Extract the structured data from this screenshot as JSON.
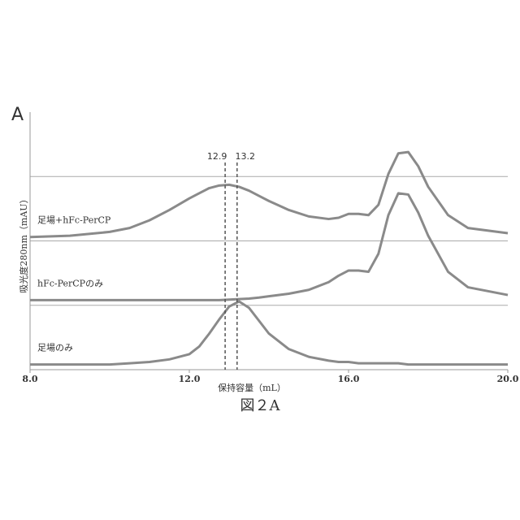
{
  "chart_data": {
    "type": "line",
    "panel_label": "A",
    "caption": "図２A",
    "x_label": "保持容量（mL）",
    "y_label": "吸光度280nm（mAU）",
    "xlim": [
      8.0,
      20.0
    ],
    "xticks": [
      {
        "value": 8,
        "label": "8.0"
      },
      {
        "value": 12,
        "label": "12.0"
      },
      {
        "value": 16,
        "label": "16.0"
      },
      {
        "value": 20,
        "label": "20.0"
      }
    ],
    "ylim": [
      0,
      100
    ],
    "hlines": [
      25,
      50,
      75
    ],
    "vlines": [
      12.9,
      13.2
    ],
    "x": [
      8,
      9,
      10,
      10.5,
      11,
      11.5,
      12,
      12.25,
      12.5,
      12.75,
      13,
      13.25,
      13.5,
      13.75,
      14,
      14.5,
      15,
      15.5,
      15.75,
      16,
      16.25,
      16.5,
      16.75,
      17,
      17.25,
      17.5,
      17.75,
      18,
      18.5,
      19,
      20
    ],
    "series": [
      {
        "name": "足場+hFc-PerCP",
        "color": "#8a8a8a",
        "values": [
          51.5,
          52,
          53.5,
          55,
          58,
          62,
          66.5,
          68.5,
          70.5,
          71.5,
          71.8,
          71,
          69.5,
          67.5,
          65.5,
          62,
          59.5,
          58.5,
          59,
          60.5,
          60.5,
          60,
          64,
          76,
          84,
          84.5,
          79,
          71,
          60,
          55,
          53
        ]
      },
      {
        "name": "hFc-PerCPのみ",
        "color": "#8a8a8a",
        "values": [
          27,
          27,
          27,
          27,
          27,
          27,
          27,
          27,
          27,
          27,
          27.2,
          27.4,
          27.6,
          28,
          28.5,
          29.5,
          31,
          34,
          36.5,
          38.5,
          38.5,
          38,
          45,
          60,
          68.5,
          68,
          61,
          52,
          38,
          32,
          29
        ]
      },
      {
        "name": "足場のみ",
        "color": "#8a8a8a",
        "values": [
          2,
          2,
          2,
          2.5,
          3,
          4,
          6,
          9,
          14,
          19.5,
          24.5,
          26.5,
          24,
          19,
          14,
          8,
          5,
          3.5,
          3,
          3,
          2.5,
          2.5,
          2.5,
          2.5,
          2.5,
          2,
          2,
          2,
          2,
          2,
          2
        ]
      }
    ]
  }
}
